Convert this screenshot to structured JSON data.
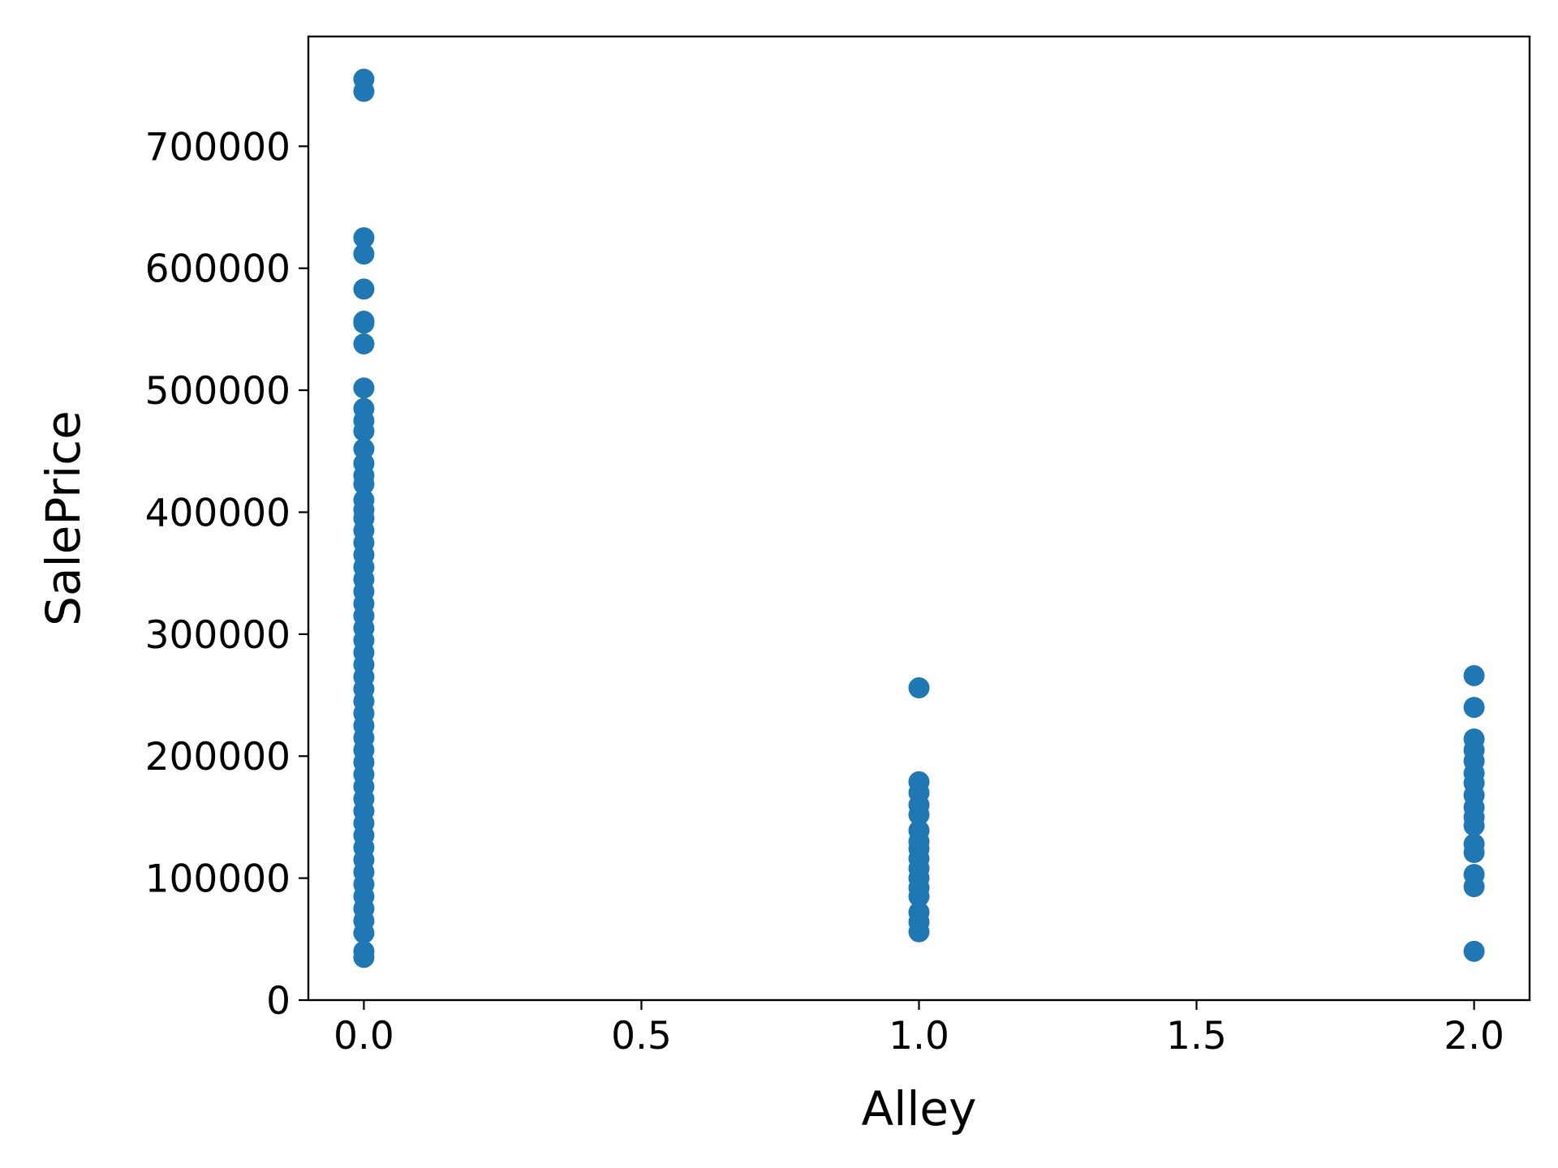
{
  "chart_data": {
    "type": "scatter",
    "title": "",
    "xlabel": "Alley",
    "ylabel": "SalePrice",
    "xlim": [
      -0.1,
      2.1
    ],
    "ylim": [
      0,
      790000
    ],
    "grid": false,
    "legend": "none",
    "x_ticks": [
      {
        "value": 0.0,
        "label": "0.0"
      },
      {
        "value": 0.5,
        "label": "0.5"
      },
      {
        "value": 1.0,
        "label": "1.0"
      },
      {
        "value": 1.5,
        "label": "1.5"
      },
      {
        "value": 2.0,
        "label": "2.0"
      }
    ],
    "y_ticks": [
      {
        "value": 0,
        "label": "0"
      },
      {
        "value": 100000,
        "label": "100000"
      },
      {
        "value": 200000,
        "label": "200000"
      },
      {
        "value": 300000,
        "label": "300000"
      },
      {
        "value": 400000,
        "label": "400000"
      },
      {
        "value": 500000,
        "label": "500000"
      },
      {
        "value": 600000,
        "label": "600000"
      },
      {
        "value": 700000,
        "label": "700000"
      }
    ],
    "series": [
      {
        "color": "#1f77b4",
        "points": [
          {
            "x": 0,
            "y": 755000
          },
          {
            "x": 0,
            "y": 745000
          },
          {
            "x": 0,
            "y": 625000
          },
          {
            "x": 0,
            "y": 611657
          },
          {
            "x": 0,
            "y": 582933
          },
          {
            "x": 0,
            "y": 556581
          },
          {
            "x": 0,
            "y": 555000
          },
          {
            "x": 0,
            "y": 538000
          },
          {
            "x": 0,
            "y": 501837
          },
          {
            "x": 0,
            "y": 485000
          },
          {
            "x": 0,
            "y": 475000
          },
          {
            "x": 0,
            "y": 466500
          },
          {
            "x": 0,
            "y": 451950
          },
          {
            "x": 0,
            "y": 440000
          },
          {
            "x": 0,
            "y": 430000
          },
          {
            "x": 0,
            "y": 423000
          },
          {
            "x": 0,
            "y": 410000
          },
          {
            "x": 0,
            "y": 402000
          },
          {
            "x": 0,
            "y": 395000
          },
          {
            "x": 0,
            "y": 385000
          },
          {
            "x": 0,
            "y": 375000
          },
          {
            "x": 0,
            "y": 365000
          },
          {
            "x": 0,
            "y": 355000
          },
          {
            "x": 0,
            "y": 345000
          },
          {
            "x": 0,
            "y": 335000
          },
          {
            "x": 0,
            "y": 325000
          },
          {
            "x": 0,
            "y": 315000
          },
          {
            "x": 0,
            "y": 305000
          },
          {
            "x": 0,
            "y": 295000
          },
          {
            "x": 0,
            "y": 285000
          },
          {
            "x": 0,
            "y": 275000
          },
          {
            "x": 0,
            "y": 265000
          },
          {
            "x": 0,
            "y": 255000
          },
          {
            "x": 0,
            "y": 245000
          },
          {
            "x": 0,
            "y": 235000
          },
          {
            "x": 0,
            "y": 225000
          },
          {
            "x": 0,
            "y": 215000
          },
          {
            "x": 0,
            "y": 205000
          },
          {
            "x": 0,
            "y": 195000
          },
          {
            "x": 0,
            "y": 185000
          },
          {
            "x": 0,
            "y": 175000
          },
          {
            "x": 0,
            "y": 165000
          },
          {
            "x": 0,
            "y": 155000
          },
          {
            "x": 0,
            "y": 145000
          },
          {
            "x": 0,
            "y": 135000
          },
          {
            "x": 0,
            "y": 125000
          },
          {
            "x": 0,
            "y": 115000
          },
          {
            "x": 0,
            "y": 105000
          },
          {
            "x": 0,
            "y": 95000
          },
          {
            "x": 0,
            "y": 85000
          },
          {
            "x": 0,
            "y": 75000
          },
          {
            "x": 0,
            "y": 65000
          },
          {
            "x": 0,
            "y": 55000
          },
          {
            "x": 0,
            "y": 40000
          },
          {
            "x": 0,
            "y": 35000
          },
          {
            "x": 1,
            "y": 256000
          },
          {
            "x": 1,
            "y": 179000
          },
          {
            "x": 1,
            "y": 170000
          },
          {
            "x": 1,
            "y": 160000
          },
          {
            "x": 1,
            "y": 152000
          },
          {
            "x": 1,
            "y": 139000
          },
          {
            "x": 1,
            "y": 130000
          },
          {
            "x": 1,
            "y": 124000
          },
          {
            "x": 1,
            "y": 116000
          },
          {
            "x": 1,
            "y": 108000
          },
          {
            "x": 1,
            "y": 100000
          },
          {
            "x": 1,
            "y": 92000
          },
          {
            "x": 1,
            "y": 85000
          },
          {
            "x": 1,
            "y": 72000
          },
          {
            "x": 1,
            "y": 64000
          },
          {
            "x": 1,
            "y": 56000
          },
          {
            "x": 2,
            "y": 266000
          },
          {
            "x": 2,
            "y": 240000
          },
          {
            "x": 2,
            "y": 214000
          },
          {
            "x": 2,
            "y": 205000
          },
          {
            "x": 2,
            "y": 196000
          },
          {
            "x": 2,
            "y": 186000
          },
          {
            "x": 2,
            "y": 178000
          },
          {
            "x": 2,
            "y": 168000
          },
          {
            "x": 2,
            "y": 158000
          },
          {
            "x": 2,
            "y": 150000
          },
          {
            "x": 2,
            "y": 143000
          },
          {
            "x": 2,
            "y": 128000
          },
          {
            "x": 2,
            "y": 121000
          },
          {
            "x": 2,
            "y": 103000
          },
          {
            "x": 2,
            "y": 93000
          },
          {
            "x": 2,
            "y": 40000
          }
        ]
      }
    ]
  }
}
